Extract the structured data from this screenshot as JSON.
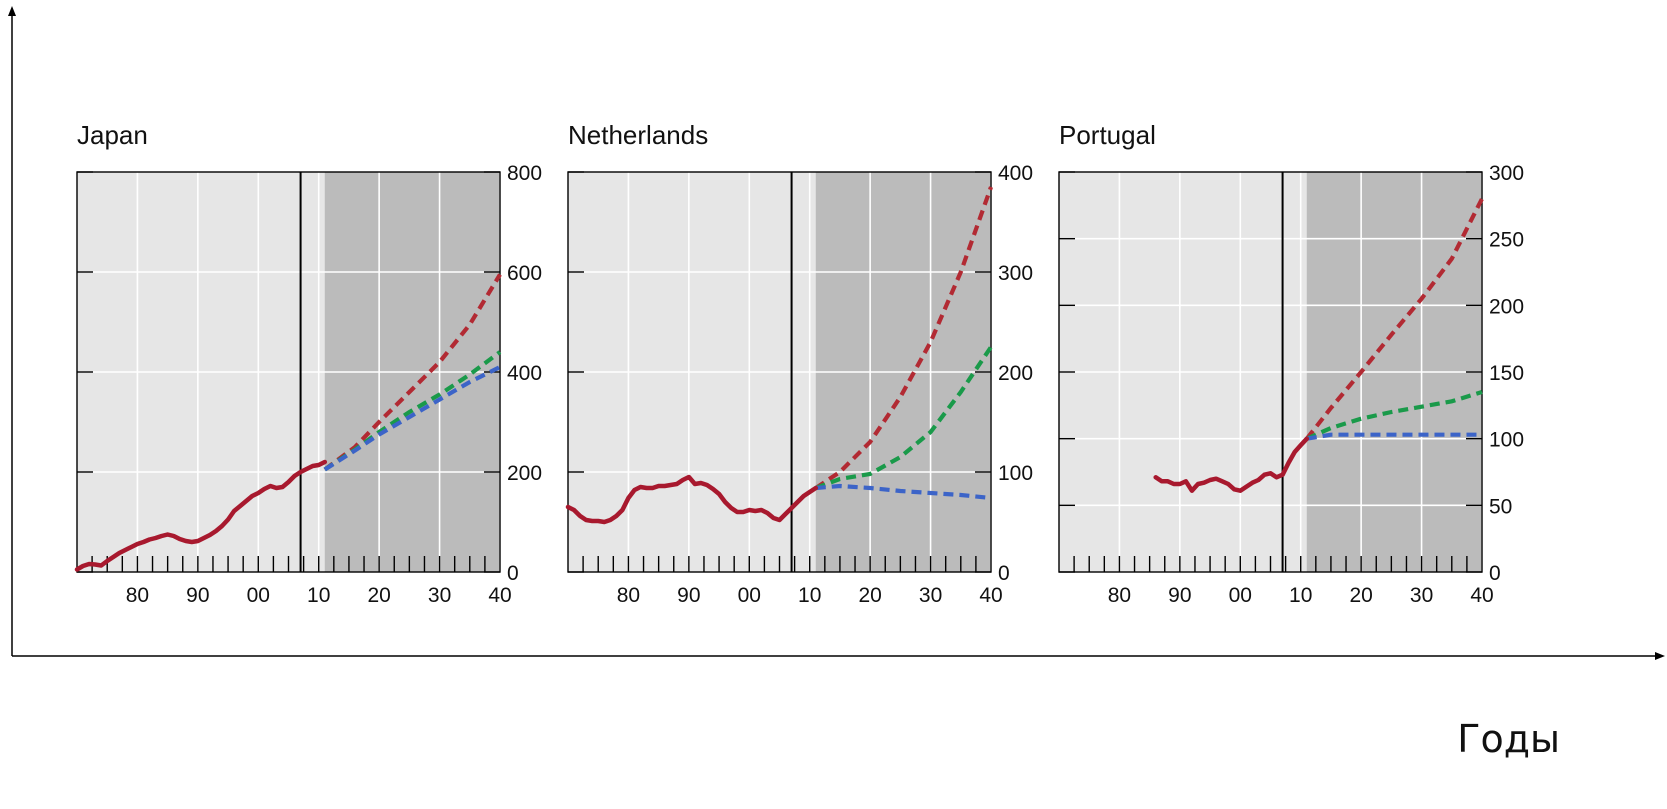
{
  "chart_data": [
    {
      "type": "line",
      "title": "Japan",
      "x_tick_labels": [
        "80",
        "90",
        "00",
        "10",
        "20",
        "30",
        "40"
      ],
      "x_ticks": [
        1980,
        1990,
        2000,
        2010,
        2020,
        2030,
        2040
      ],
      "xlim": [
        1970,
        2040
      ],
      "ylim": [
        0,
        800
      ],
      "y_ticks": [
        0,
        200,
        400,
        600,
        800
      ],
      "y_tick_labels": [
        "0",
        "200",
        "400",
        "600",
        "800"
      ],
      "axis_position": "right",
      "grid": true,
      "vertical_line_x": 2007,
      "shaded_x_range": [
        2011,
        2040
      ],
      "historical": {
        "color": "#a8192e",
        "x": [
          1970,
          1971,
          1972,
          1973,
          1974,
          1975,
          1976,
          1977,
          1978,
          1979,
          1980,
          1981,
          1982,
          1983,
          1984,
          1985,
          1986,
          1987,
          1988,
          1989,
          1990,
          1991,
          1992,
          1993,
          1994,
          1995,
          1996,
          1997,
          1998,
          1999,
          2000,
          2001,
          2002,
          2003,
          2004,
          2005,
          2006,
          2007,
          2008,
          2009,
          2010,
          2011
        ],
        "y": [
          5,
          12,
          16,
          15,
          13,
          22,
          30,
          38,
          44,
          50,
          56,
          60,
          65,
          68,
          72,
          75,
          72,
          66,
          62,
          60,
          62,
          68,
          74,
          82,
          92,
          105,
          122,
          132,
          142,
          152,
          158,
          166,
          172,
          168,
          170,
          180,
          192,
          200,
          206,
          212,
          214,
          220
        ]
      },
      "series": [
        {
          "color": "#b22a33",
          "style": "dashed",
          "x": [
            2011,
            2016,
            2020,
            2025,
            2030,
            2035,
            2040
          ],
          "y": [
            205,
            250,
            300,
            360,
            420,
            495,
            595
          ]
        },
        {
          "color": "#1a9a4a",
          "style": "dashed",
          "x": [
            2011,
            2016,
            2020,
            2025,
            2030,
            2035,
            2040
          ],
          "y": [
            205,
            245,
            280,
            320,
            355,
            395,
            440
          ]
        },
        {
          "color": "#3c64c8",
          "style": "dashed",
          "x": [
            2011,
            2016,
            2020,
            2025,
            2030,
            2035,
            2040
          ],
          "y": [
            205,
            243,
            275,
            310,
            345,
            380,
            410
          ]
        }
      ]
    },
    {
      "type": "line",
      "title": "Netherlands",
      "x_tick_labels": [
        "80",
        "90",
        "00",
        "10",
        "20",
        "30",
        "40"
      ],
      "x_ticks": [
        1980,
        1990,
        2000,
        2010,
        2020,
        2030,
        2040
      ],
      "xlim": [
        1970,
        2040
      ],
      "ylim": [
        0,
        400
      ],
      "y_ticks": [
        0,
        100,
        200,
        300,
        400
      ],
      "y_tick_labels": [
        "0",
        "100",
        "200",
        "300",
        "400"
      ],
      "axis_position": "right",
      "grid": true,
      "vertical_line_x": 2007,
      "shaded_x_range": [
        2011,
        2040
      ],
      "historical": {
        "color": "#a8192e",
        "x": [
          1970,
          1971,
          1972,
          1973,
          1974,
          1975,
          1976,
          1977,
          1978,
          1979,
          1980,
          1981,
          1982,
          1983,
          1984,
          1985,
          1986,
          1987,
          1988,
          1989,
          1990,
          1991,
          1992,
          1993,
          1994,
          1995,
          1996,
          1997,
          1998,
          1999,
          2000,
          2001,
          2002,
          2003,
          2004,
          2005,
          2006,
          2007,
          2008,
          2009,
          2010,
          2011
        ],
        "y": [
          65,
          62,
          56,
          52,
          51,
          51,
          50,
          52,
          56,
          62,
          74,
          82,
          85,
          84,
          84,
          86,
          86,
          87,
          88,
          92,
          95,
          88,
          89,
          87,
          83,
          78,
          70,
          64,
          60,
          60,
          62,
          61,
          62,
          59,
          54,
          52,
          58,
          64,
          70,
          76,
          80,
          84
        ]
      },
      "series": [
        {
          "color": "#b22a33",
          "style": "dashed",
          "x": [
            2011,
            2015,
            2020,
            2025,
            2030,
            2035,
            2040
          ],
          "y": [
            84,
            100,
            130,
            175,
            230,
            300,
            385
          ]
        },
        {
          "color": "#1a9a4a",
          "style": "dashed",
          "x": [
            2011,
            2015,
            2020,
            2025,
            2030,
            2035,
            2040
          ],
          "y": [
            84,
            93,
            98,
            115,
            140,
            180,
            225
          ]
        },
        {
          "color": "#3c64c8",
          "style": "dashed",
          "x": [
            2011,
            2015,
            2020,
            2025,
            2030,
            2035,
            2040
          ],
          "y": [
            84,
            86,
            84,
            81,
            79,
            77,
            74
          ]
        }
      ]
    },
    {
      "type": "line",
      "title": "Portugal",
      "x_tick_labels": [
        "80",
        "90",
        "00",
        "10",
        "20",
        "30",
        "40"
      ],
      "x_ticks": [
        1980,
        1990,
        2000,
        2010,
        2020,
        2030,
        2040
      ],
      "xlim": [
        1970,
        2040
      ],
      "ylim": [
        0,
        300
      ],
      "y_ticks": [
        0,
        50,
        100,
        150,
        200,
        250,
        300
      ],
      "y_tick_labels": [
        "0",
        "50",
        "100",
        "150",
        "200",
        "250",
        "300"
      ],
      "axis_position": "right",
      "grid": true,
      "vertical_line_x": 2007,
      "shaded_x_range": [
        2011,
        2040
      ],
      "historical": {
        "color": "#a8192e",
        "x": [
          1986,
          1987,
          1988,
          1989,
          1990,
          1991,
          1992,
          1993,
          1994,
          1995,
          1996,
          1997,
          1998,
          1999,
          2000,
          2001,
          2002,
          2003,
          2004,
          2005,
          2006,
          2007,
          2008,
          2009,
          2010,
          2011
        ],
        "y": [
          71,
          68,
          68,
          66,
          66,
          68,
          61,
          66,
          67,
          69,
          70,
          68,
          66,
          62,
          61,
          64,
          67,
          69,
          73,
          74,
          71,
          73,
          82,
          90,
          95,
          100
        ]
      },
      "series": [
        {
          "color": "#b22a33",
          "style": "dashed",
          "x": [
            2011,
            2015,
            2020,
            2025,
            2030,
            2035,
            2040
          ],
          "y": [
            100,
            123,
            150,
            178,
            205,
            235,
            280
          ]
        },
        {
          "color": "#1a9a4a",
          "style": "dashed",
          "x": [
            2011,
            2015,
            2020,
            2025,
            2030,
            2035,
            2040
          ],
          "y": [
            100,
            108,
            115,
            120,
            124,
            128,
            135
          ]
        },
        {
          "color": "#3c64c8",
          "style": "dashed",
          "x": [
            2011,
            2015,
            2020,
            2025,
            2030,
            2035,
            2040
          ],
          "y": [
            100,
            103,
            103,
            103,
            103,
            103,
            103
          ]
        }
      ]
    }
  ],
  "outer_axis": {
    "x_label": "Годы"
  },
  "colors": {
    "plot_background": "#e6e6e6",
    "projection_background": "#bbbbbb",
    "grid": "#ffffff",
    "frame": "#000000"
  }
}
